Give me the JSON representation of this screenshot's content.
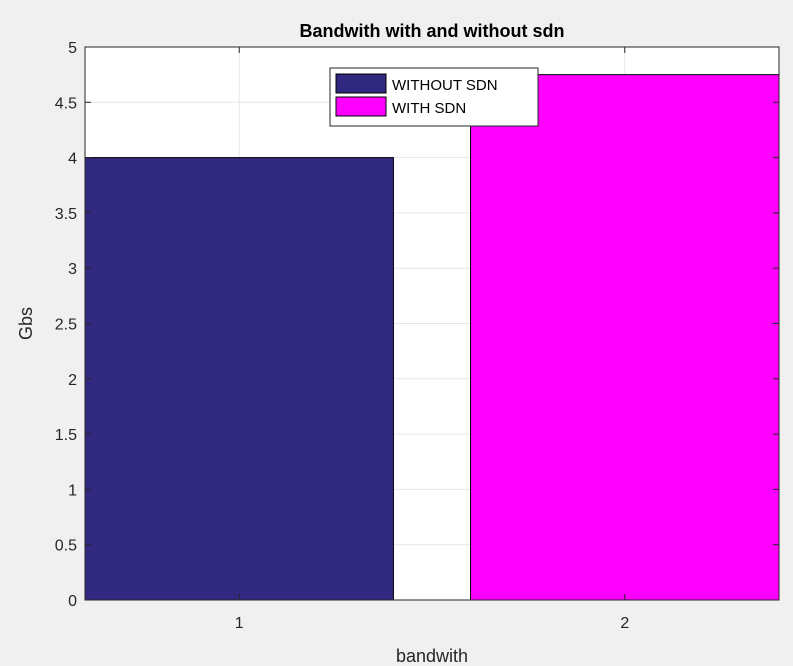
{
  "chart_data": {
    "type": "bar",
    "title": "Bandwith with and without sdn",
    "xlabel": "bandwith",
    "ylabel": "Gbs",
    "categories": [
      "1",
      "2"
    ],
    "series": [
      {
        "name": "WITHOUT SDN",
        "values": [
          4.0
        ],
        "x": [
          1
        ],
        "color": "#31297f"
      },
      {
        "name": "WITH SDN",
        "values": [
          4.75
        ],
        "x": [
          2
        ],
        "color": "#ff00ff"
      }
    ],
    "ylim": [
      0,
      5
    ],
    "yticks": [
      "0",
      "0.5",
      "1",
      "1.5",
      "2",
      "2.5",
      "3",
      "3.5",
      "4",
      "4.5",
      "5"
    ],
    "xticks": [
      "1",
      "2"
    ],
    "grid": true,
    "legend_position": "top-center",
    "colors": {
      "background": "#f0f0f0",
      "axes": "#ffffff",
      "grid": "#e6e6e6",
      "axis_line": "#262626"
    }
  }
}
